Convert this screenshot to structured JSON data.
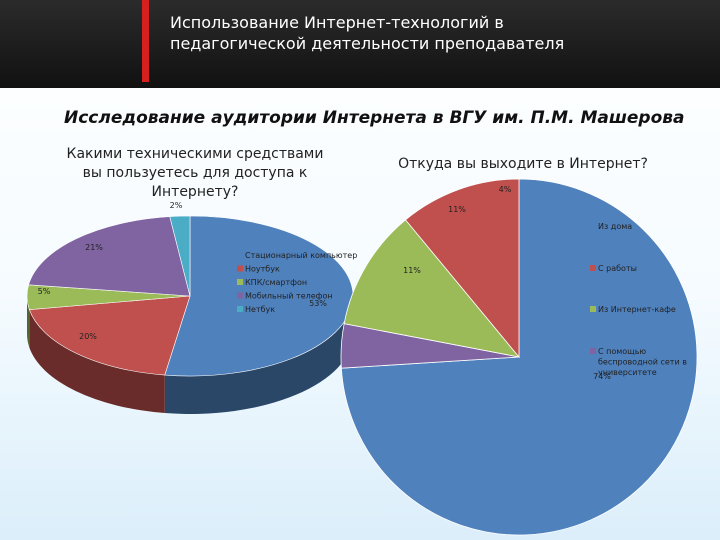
{
  "header": {
    "title_line1": "Использование Интернет-технологий в",
    "title_line2": "педагогической деятельности преподавателя"
  },
  "subtitle": "Исследование аудитории Интернета в ВГУ им. П.М. Машерова",
  "colors": {
    "band": "#1a1a1a",
    "accent_bar": "#d62020"
  },
  "chart_data": [
    {
      "type": "pie",
      "title_lines": [
        "Какими техническими средствами",
        "вы пользуетесь для доступа к",
        "Интернету?"
      ],
      "categories": [
        "Стационарный компьютер",
        "Ноутбук",
        "КПК/смартфон",
        "Мобильный телефон",
        "Нетбук"
      ],
      "values": [
        53,
        20,
        5,
        21,
        2
      ],
      "labels": [
        "53%",
        "20%",
        "5%",
        "21%",
        "2%"
      ],
      "colors": [
        "#4f81bd",
        "#c0504d",
        "#9bbb59",
        "#8064a2",
        "#4bacc6"
      ],
      "style": "3d",
      "legend": "inside-right"
    },
    {
      "type": "pie",
      "title": "Откуда вы выходите в Интернет?",
      "categories": [
        "Из дома",
        "С работы",
        "Из Интернет-кафе",
        "С помощью беспроводной сети в университете"
      ],
      "legend_lines": [
        [
          "Из дома"
        ],
        [
          "С работы"
        ],
        [
          "Из Интернет-кафе"
        ],
        [
          "С помощью",
          "беспроводной сети в",
          "университете"
        ]
      ],
      "values": [
        74,
        11,
        11,
        4
      ],
      "labels": [
        "74%",
        "11%",
        "11%",
        "4%"
      ],
      "colors": [
        "#4f81bd",
        "#c0504d",
        "#9bbb59",
        "#8064a2"
      ],
      "legend": "right"
    }
  ]
}
